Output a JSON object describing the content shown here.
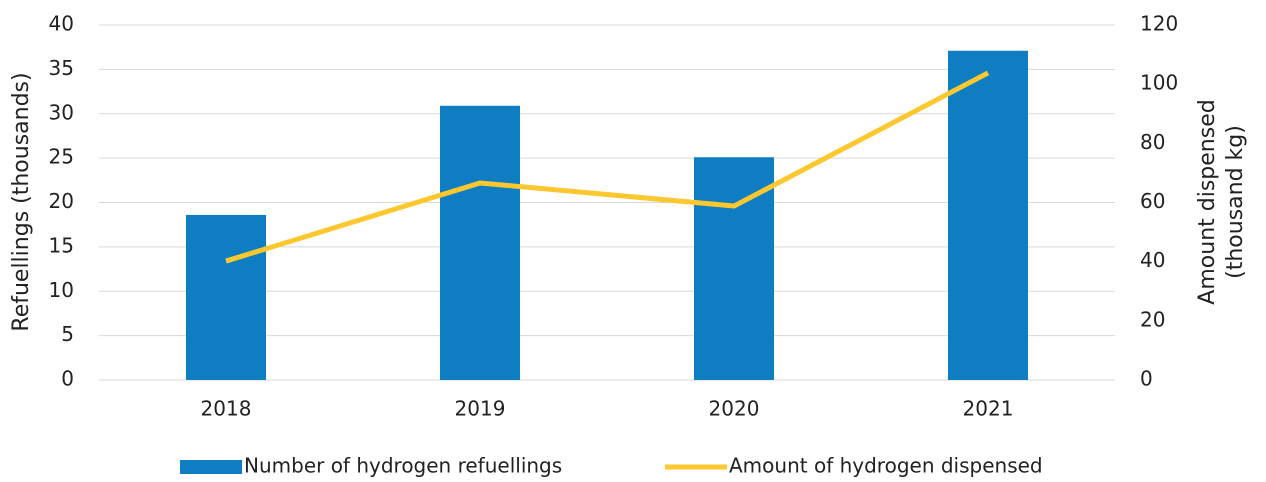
{
  "chart_data": {
    "type": "bar_line",
    "categories": [
      "2018",
      "2019",
      "2020",
      "2021"
    ],
    "series": [
      {
        "name": "Number of hydrogen refuellings",
        "type": "bar",
        "color": "#0f7dc2",
        "values": [
          18.6,
          30.9,
          25.1,
          37.1
        ]
      },
      {
        "name": "Amount of hydrogen dispensed",
        "type": "line",
        "axis": "y2",
        "color": "#fdc82f",
        "values": [
          40.2,
          66.6,
          58.8,
          103.8
        ]
      }
    ],
    "ylabel": "Refuellings (thousands)",
    "y2label": [
      "Amount dispensed",
      "(thousand kg)"
    ],
    "ylim": [
      0,
      40
    ],
    "yticks": [
      0,
      5,
      10,
      15,
      20,
      25,
      30,
      35,
      40
    ],
    "y2lim": [
      0,
      120
    ],
    "y2ticks": [
      0,
      20,
      40,
      60,
      80,
      100,
      120
    ],
    "grid": true,
    "legend": "bottom"
  }
}
